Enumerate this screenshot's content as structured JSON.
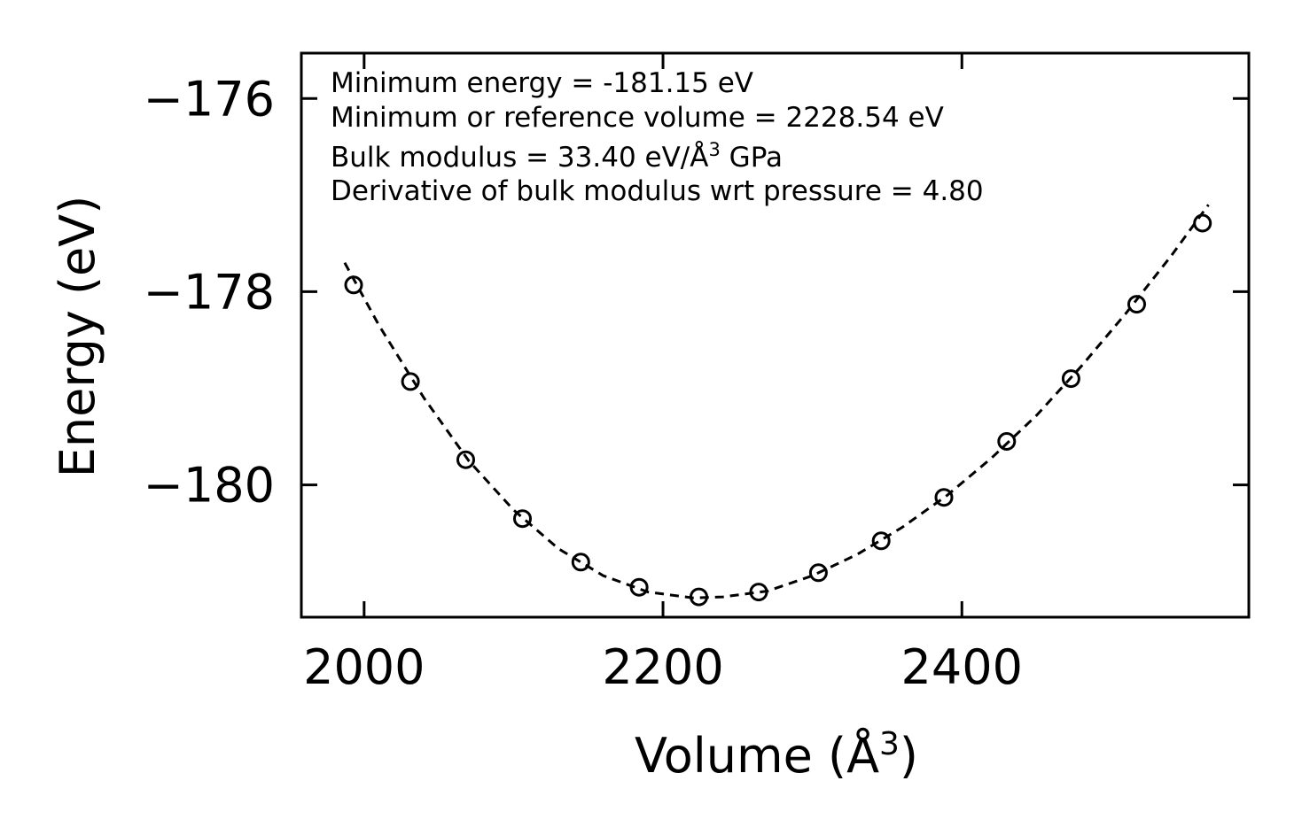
{
  "chart_data": {
    "type": "scatter",
    "xlabel": "Volume (Å",
    "xlabel_sup": "3",
    "xlabel_end": ")",
    "ylabel": "Energy (eV)",
    "xlim": [
      1958,
      2592
    ],
    "ylim": [
      -181.37,
      -175.53
    ],
    "xticks": [
      2000,
      2200,
      2400
    ],
    "xtick_labels": [
      "2000",
      "2200",
      "2400"
    ],
    "yticks": [
      -176,
      -178,
      -180
    ],
    "ytick_labels": [
      "−176",
      "−178",
      "−180"
    ],
    "series": [
      {
        "name": "data",
        "marker": "open-circle",
        "x": [
          1993,
          2031,
          2068,
          2106,
          2145,
          2184,
          2224,
          2264,
          2304,
          2346,
          2388,
          2430,
          2473,
          2517,
          2561
        ],
        "y": [
          -177.93,
          -178.93,
          -179.74,
          -180.35,
          -180.8,
          -181.06,
          -181.16,
          -181.11,
          -180.91,
          -180.58,
          -180.13,
          -179.55,
          -178.9,
          -178.13,
          -177.29
        ]
      },
      {
        "name": "fit",
        "style": "dashed",
        "x": [
          1987,
          2010,
          2040,
          2070,
          2100,
          2130,
          2160,
          2190,
          2220,
          2240,
          2270,
          2300,
          2330,
          2360,
          2390,
          2420,
          2450,
          2480,
          2510,
          2540,
          2565
        ],
        "y": [
          -177.7,
          -178.35,
          -179.1,
          -179.75,
          -180.26,
          -180.66,
          -180.94,
          -181.11,
          -181.17,
          -181.16,
          -181.1,
          -180.94,
          -180.72,
          -180.44,
          -180.11,
          -179.72,
          -179.28,
          -178.77,
          -178.22,
          -177.63,
          -177.1
        ]
      }
    ],
    "annotations": [
      {
        "text": "Minimum energy = -181.15 eV"
      },
      {
        "text": "Minimum or reference volume = 2228.54 eV"
      },
      {
        "text": "Bulk modulus = 33.40 eV/Å",
        "sup": "3",
        "tail": " GPa"
      },
      {
        "text": "Derivative of bulk modulus wrt pressure = 4.80"
      }
    ],
    "grid": false,
    "legend": "none"
  }
}
